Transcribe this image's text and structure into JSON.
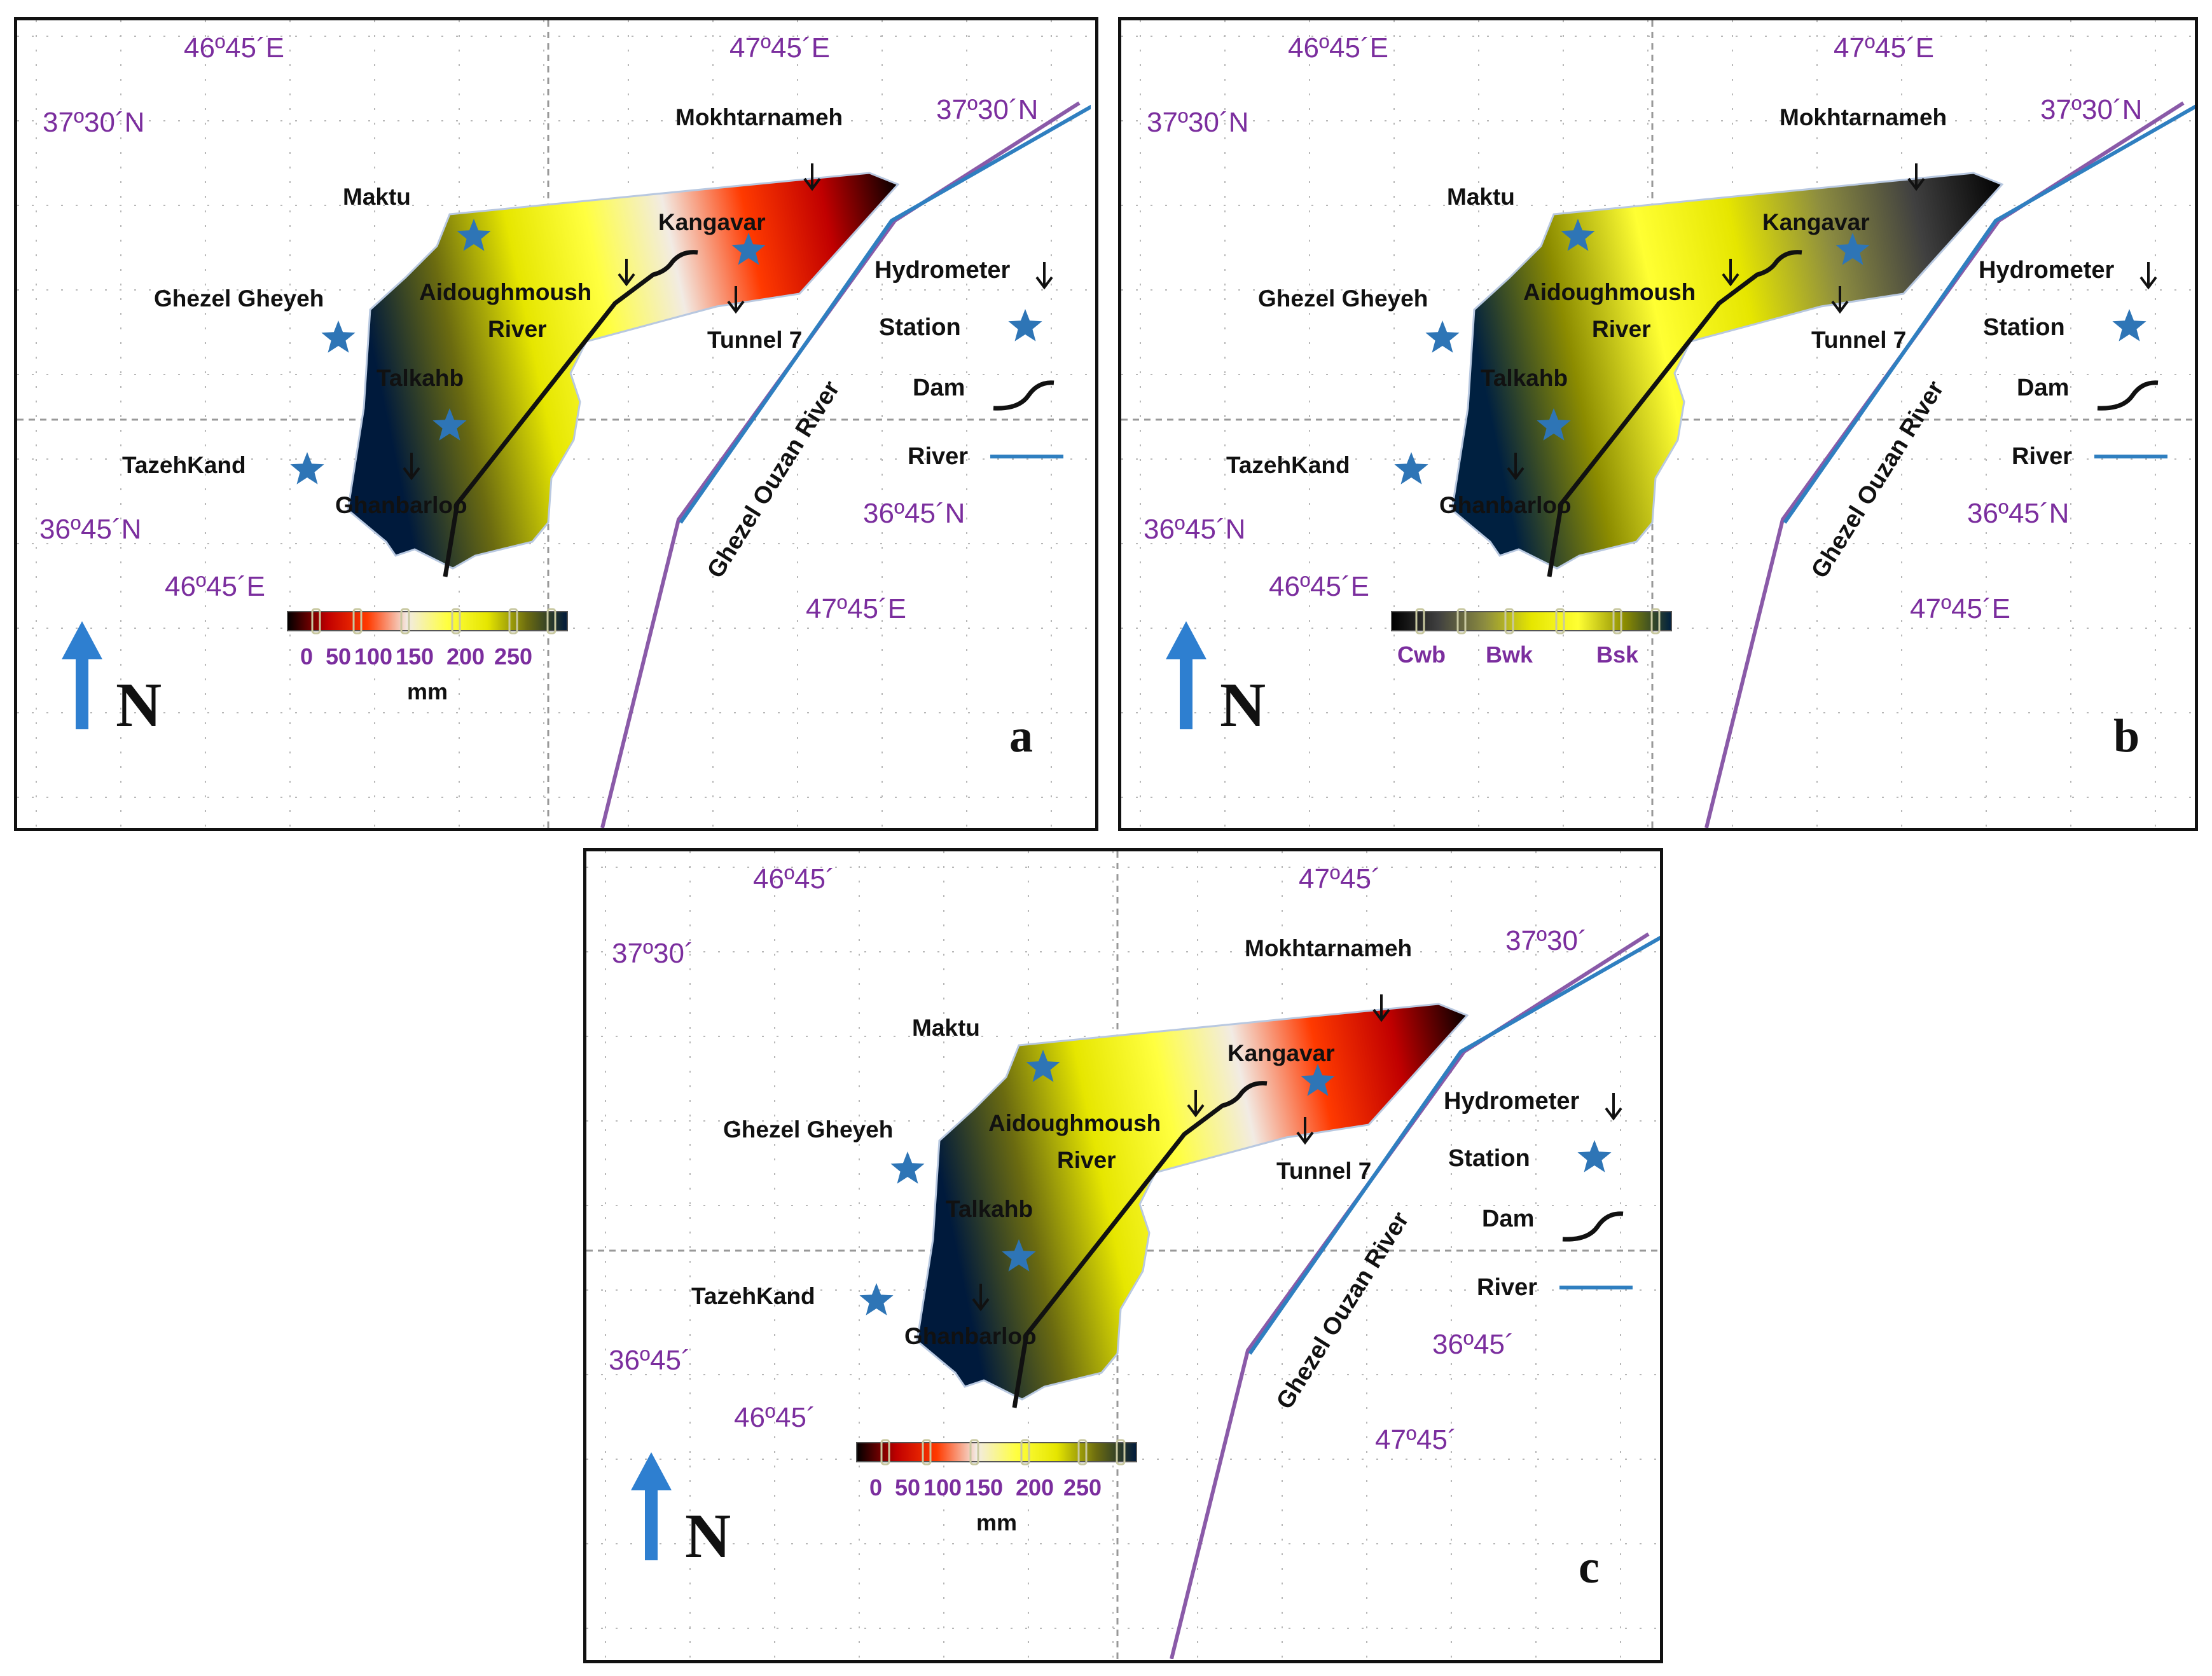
{
  "colors": {
    "coord_label": "#7b2e9e",
    "river_blue": "#2f7fc0",
    "river_purple": "#8a5aa8",
    "station_star": "#2e75b6",
    "north_arrow": "#2e7fd0",
    "dam": "#111111",
    "grid": "#b8b8b8"
  },
  "gradients": {
    "precipitation": [
      "#000000",
      "#c00000",
      "#ff3a00",
      "#f2ebe4",
      "#ffff40",
      "#e6e600",
      "#6b6b10",
      "#001a3c"
    ],
    "climate": [
      "#000000",
      "#404040",
      "#8c8c40",
      "#e6e600",
      "#ffff33",
      "#8c8c00",
      "#002040"
    ]
  },
  "legend": {
    "hydrometer": "Hydrometer",
    "station": "Station",
    "dam": "Dam",
    "river": "River",
    "hydrometer_icon": "down-arrow-icon",
    "station_icon": "star-icon",
    "dam_icon": "dam-curve-icon",
    "river_icon": "line-icon"
  },
  "places": {
    "mokhtarnameh": "Mokhtarnameh",
    "maktu": "Maktu",
    "kangavar": "Kangavar",
    "ghezel_gheyeh": "Ghezel Gheyeh",
    "aidoughmoush": "Aidoughmoush",
    "river": "River",
    "tunnel7": "Tunnel 7",
    "talkahb": "Talkahb",
    "tazehkand": "TazehKand",
    "ghanbarloo": "Ghanbarloo",
    "ghezel_ouzan_river": "Ghezel Ouzan River"
  },
  "north_label": "N",
  "panels": [
    {
      "letter": "a",
      "coords": {
        "top_lon_left": "46º45´E",
        "top_lon_right": "47º45´E",
        "lat_top_left": "37º30´N",
        "lat_top_right": "37º30´N",
        "lat_bottom_left": "36º45´N",
        "lat_bottom_right": "36º45´N",
        "bottom_lon_left": "46º45´E",
        "bottom_lon_right": "47º45´E"
      },
      "scale": {
        "type": "precipitation",
        "ticks": [
          "0",
          "50",
          "100",
          "150",
          "200",
          "250"
        ],
        "unit": "mm"
      }
    },
    {
      "letter": "b",
      "coords": {
        "top_lon_left": "46º45´E",
        "top_lon_right": "47º45´E",
        "lat_top_left": "37º30´N",
        "lat_top_right": "37º30´N",
        "lat_bottom_left": "36º45´N",
        "lat_bottom_right": "36º45´N",
        "bottom_lon_left": "46º45´E",
        "bottom_lon_right": "47º45´E"
      },
      "scale": {
        "type": "climate",
        "classes": [
          "Cwb",
          "Bwk",
          "Bsk"
        ]
      }
    },
    {
      "letter": "c",
      "coords": {
        "top_lon_left": "46º45´",
        "top_lon_right": "47º45´",
        "lat_top_left": "37º30´",
        "lat_top_right": "37º30´",
        "lat_bottom_left": "36º45´",
        "lat_bottom_right": "36º45´",
        "bottom_lon_left": "46º45´",
        "bottom_lon_right": "47º45´"
      },
      "scale": {
        "type": "precipitation",
        "ticks": [
          "0",
          "50",
          "100",
          "150",
          "200",
          "250"
        ],
        "unit": "mm"
      }
    }
  ]
}
